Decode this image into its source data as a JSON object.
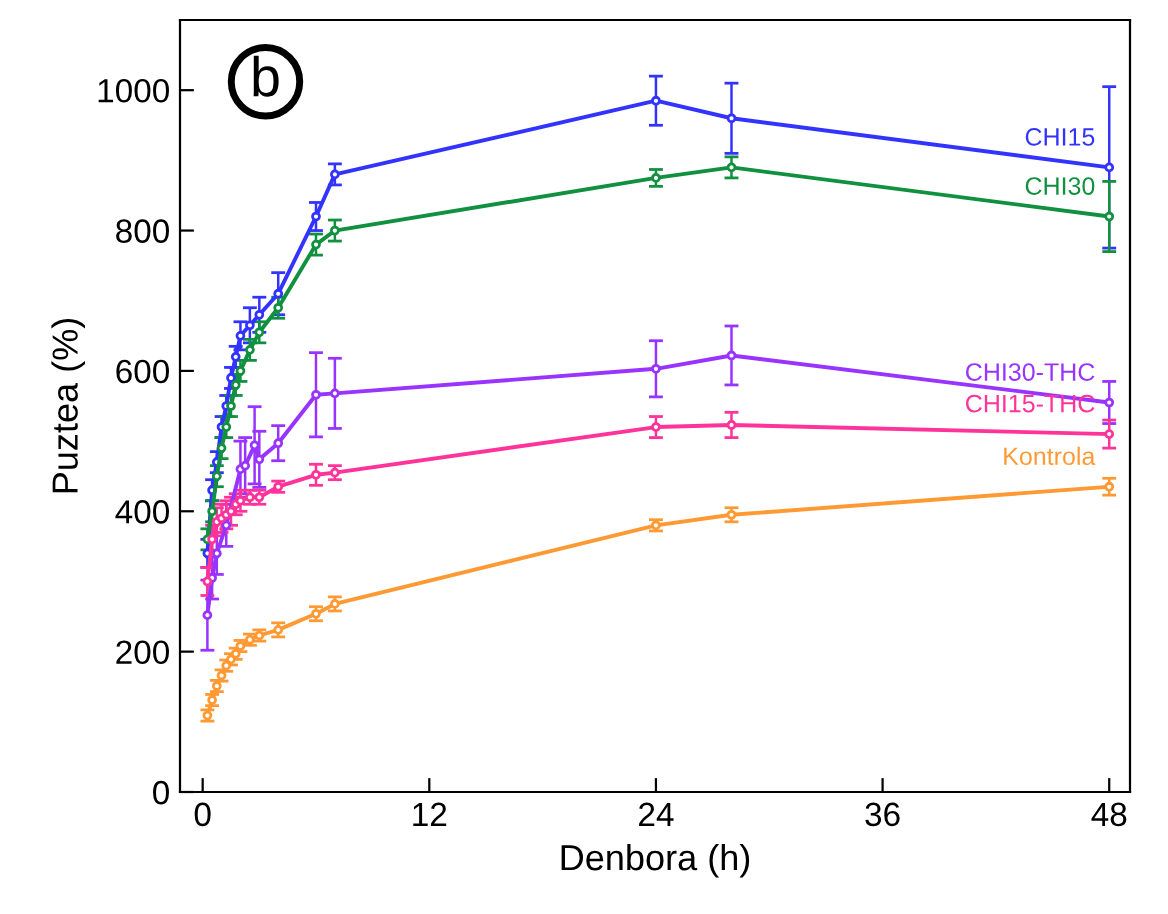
{
  "chart_data": {
    "type": "line",
    "xlabel": "Denbora (h)",
    "ylabel": "Puztea (%)",
    "xlim": [
      -1.2,
      49.1
    ],
    "ylim": [
      0,
      1100
    ],
    "xticks": [
      0,
      12,
      24,
      36,
      48
    ],
    "yticks": [
      0,
      200,
      400,
      600,
      800,
      1000
    ],
    "grid": false,
    "legend": false,
    "marker": "circle",
    "line_style": "solid",
    "annotations": [
      "b"
    ],
    "series": [
      {
        "name": "CHI15",
        "color": "#3333ff",
        "x": [
          0.25,
          0.5,
          0.75,
          1,
          1.25,
          1.5,
          1.75,
          2,
          2.5,
          3,
          4,
          6,
          7,
          24,
          28,
          48
        ],
        "values": [
          340,
          430,
          470,
          520,
          550,
          590,
          620,
          650,
          665,
          680,
          710,
          820,
          880,
          985,
          960,
          890
        ],
        "errors": [
          20,
          15,
          15,
          15,
          15,
          15,
          15,
          20,
          25,
          25,
          30,
          20,
          15,
          35,
          50,
          115
        ]
      },
      {
        "name": "CHI30",
        "color": "#119040",
        "x": [
          0.25,
          0.5,
          0.75,
          1,
          1.25,
          1.5,
          1.75,
          2,
          2.5,
          3,
          4,
          6,
          7,
          24,
          28,
          48
        ],
        "values": [
          360,
          400,
          450,
          490,
          520,
          550,
          580,
          600,
          630,
          655,
          690,
          780,
          800,
          875,
          890,
          820
        ],
        "errors": [
          15,
          15,
          15,
          15,
          15,
          15,
          15,
          15,
          15,
          15,
          15,
          15,
          15,
          12,
          15,
          50
        ]
      },
      {
        "name": "CHI30-THC",
        "color": "#9933ff",
        "x": [
          0.25,
          0.5,
          0.75,
          1.25,
          2,
          2.25,
          2.75,
          3,
          4,
          6,
          7,
          24,
          28,
          48
        ],
        "values": [
          252,
          305,
          340,
          380,
          460,
          465,
          494,
          474,
          497,
          566,
          568,
          603,
          622,
          555
        ],
        "errors": [
          50,
          30,
          30,
          30,
          40,
          40,
          55,
          40,
          25,
          60,
          50,
          40,
          42,
          30
        ]
      },
      {
        "name": "CHI15-THC",
        "color": "#ff3399",
        "x": [
          0.25,
          0.5,
          0.75,
          1,
          1.25,
          1.5,
          1.75,
          2,
          2.5,
          3,
          4,
          6,
          7,
          24,
          28,
          48
        ],
        "values": [
          300,
          360,
          385,
          390,
          395,
          400,
          410,
          415,
          420,
          420,
          435,
          452,
          455,
          520,
          523,
          510
        ],
        "errors": [
          20,
          20,
          20,
          20,
          20,
          20,
          15,
          15,
          10,
          10,
          8,
          15,
          10,
          15,
          18,
          20
        ]
      },
      {
        "name": "Kontrola",
        "color": "#ff9933",
        "x": [
          0.25,
          0.5,
          0.75,
          1,
          1.25,
          1.5,
          1.75,
          2,
          2.5,
          3,
          4,
          6,
          7,
          24,
          28,
          48
        ],
        "values": [
          109,
          131,
          151,
          166,
          180,
          189,
          197,
          208,
          217,
          223,
          231,
          254,
          268,
          380,
          395,
          435
        ],
        "errors": [
          8,
          8,
          8,
          8,
          8,
          8,
          8,
          8,
          8,
          8,
          10,
          10,
          10,
          8,
          10,
          12
        ]
      }
    ]
  }
}
